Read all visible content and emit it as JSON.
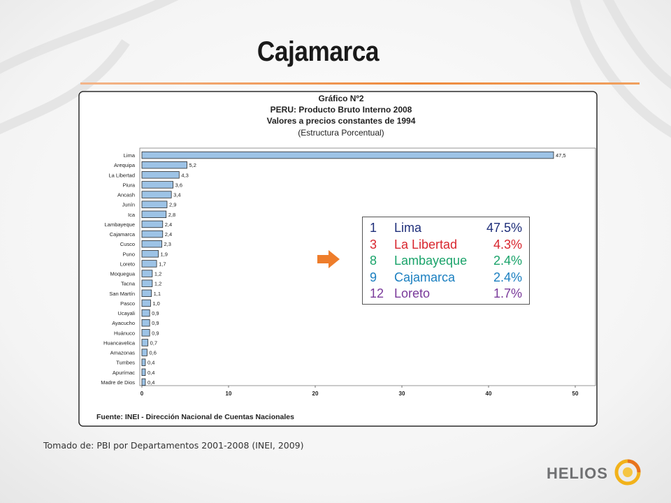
{
  "slide": {
    "title": "Cajamarca",
    "source_note": "Tomado de: PBI por Departamentos 2001-2008 (INEI, 2009)",
    "logo_text": "HELIOS",
    "accent_color": "#ee8a3c"
  },
  "chart_data": {
    "type": "bar",
    "orientation": "horizontal",
    "title_lines": [
      "Gráfico Nº2",
      "PERU: Producto Bruto Interno 2008",
      "Valores a precios constantes de 1994",
      "(Estructura Porcentual)"
    ],
    "categories": [
      "Lima",
      "Arequipa",
      "La Libertad",
      "Piura",
      "Ancash",
      "Junín",
      "Ica",
      "Lambayeque",
      "Cajamarca",
      "Cusco",
      "Puno",
      "Loreto",
      "Moquegua",
      "Tacna",
      "San Martín",
      "Pasco",
      "Ucayali",
      "Ayacucho",
      "Huánuco",
      "Huancavelica",
      "Amazonas",
      "Tumbes",
      "Apurímac",
      "Madre de Dios"
    ],
    "values": [
      47.5,
      5.2,
      4.3,
      3.6,
      3.4,
      2.9,
      2.8,
      2.4,
      2.4,
      2.3,
      1.9,
      1.7,
      1.2,
      1.2,
      1.1,
      1.0,
      0.9,
      0.9,
      0.9,
      0.7,
      0.6,
      0.4,
      0.4,
      0.4
    ],
    "value_labels": [
      "47,5",
      "5,2",
      "4,3",
      "3,6",
      "3,4",
      "2,9",
      "2,8",
      "2,4",
      "2,4",
      "2,3",
      "1,9",
      "1,7",
      "1,2",
      "1,2",
      "1,1",
      "1,0",
      "0,9",
      "0,9",
      "0,9",
      "0,7",
      "0,6",
      "0,4",
      "0,4",
      "0,4"
    ],
    "xlim": [
      0,
      50
    ],
    "x_ticks": [
      0,
      10,
      20,
      30,
      40,
      50
    ],
    "grid": false,
    "bar_color": "#9dc3e6",
    "source": "Fuente: INEI - Dirección Nacional de Cuentas Nacionales"
  },
  "callout": {
    "rows": [
      {
        "rank": "1",
        "name": "Lima",
        "pct": "47.5%",
        "color": "#1f2f7a"
      },
      {
        "rank": "3",
        "name": "La Libertad",
        "pct": "4.3%",
        "color": "#d8262e"
      },
      {
        "rank": "8",
        "name": "Lambayeque",
        "pct": "2.4%",
        "color": "#1aa36a"
      },
      {
        "rank": "9",
        "name": "Cajamarca",
        "pct": "2.4%",
        "color": "#1a7fc0"
      },
      {
        "rank": "12",
        "name": "Loreto",
        "pct": "1.7%",
        "color": "#7a3a9a"
      }
    ]
  },
  "icons": {
    "arrow": "right-arrow-icon",
    "logo_mark": "helios-sun-icon"
  }
}
